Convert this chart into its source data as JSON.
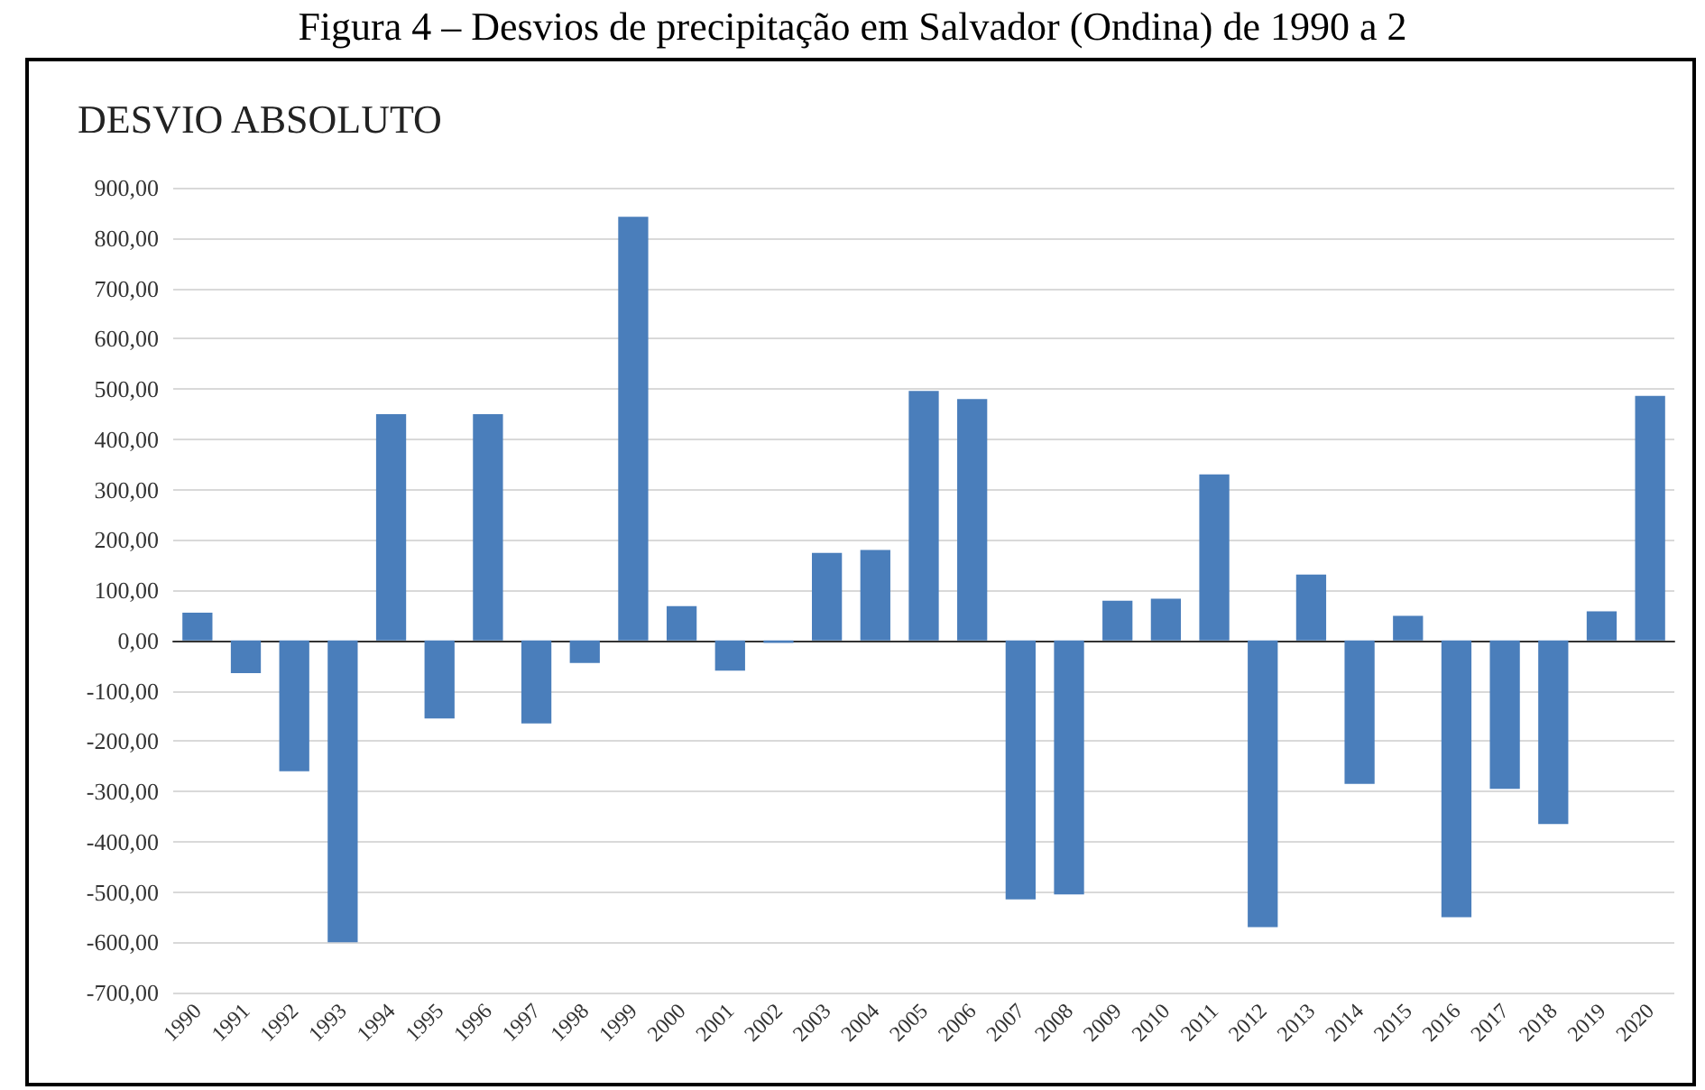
{
  "chart_data": {
    "type": "bar",
    "title": "Figura 4 – Desvios de precipitação em Salvador (Ondina) de 1990 a 2",
    "subtitle": "DESVIO ABSOLUTO",
    "categories": [
      "1990",
      "1991",
      "1992",
      "1993",
      "1994",
      "1995",
      "1996",
      "1997",
      "1998",
      "1999",
      "2000",
      "2001",
      "2002",
      "2003",
      "2004",
      "2005",
      "2006",
      "2007",
      "2008",
      "2009",
      "2010",
      "2011",
      "2012",
      "2013",
      "2014",
      "2015",
      "2016",
      "2017",
      "2018",
      "2019",
      "2020"
    ],
    "values": [
      55,
      -65,
      -260,
      -600,
      450,
      -155,
      450,
      -165,
      -45,
      842,
      68,
      -60,
      -5,
      174,
      180,
      496,
      480,
      -515,
      -505,
      79,
      83,
      330,
      -570,
      131,
      -285,
      49,
      -550,
      -295,
      -365,
      58,
      486
    ],
    "color": "#4a7ebb",
    "ylim": [
      -700,
      900
    ],
    "yticks": [
      {
        "value": -700,
        "label": "-700,00"
      },
      {
        "value": -600,
        "label": "-600,00"
      },
      {
        "value": -500,
        "label": "-500,00"
      },
      {
        "value": -400,
        "label": "-400,00"
      },
      {
        "value": -300,
        "label": "-300,00"
      },
      {
        "value": -200,
        "label": "-200,00"
      },
      {
        "value": -100,
        "label": "-100,00"
      },
      {
        "value": 0,
        "label": "0,00"
      },
      {
        "value": 100,
        "label": "100,00"
      },
      {
        "value": 200,
        "label": "200,00"
      },
      {
        "value": 300,
        "label": "300,00"
      },
      {
        "value": 400,
        "label": "400,00"
      },
      {
        "value": 500,
        "label": "500,00"
      },
      {
        "value": 600,
        "label": "600,00"
      },
      {
        "value": 700,
        "label": "700,00"
      },
      {
        "value": 800,
        "label": "800,00"
      },
      {
        "value": 900,
        "label": "900,00"
      }
    ],
    "grid": "y"
  }
}
